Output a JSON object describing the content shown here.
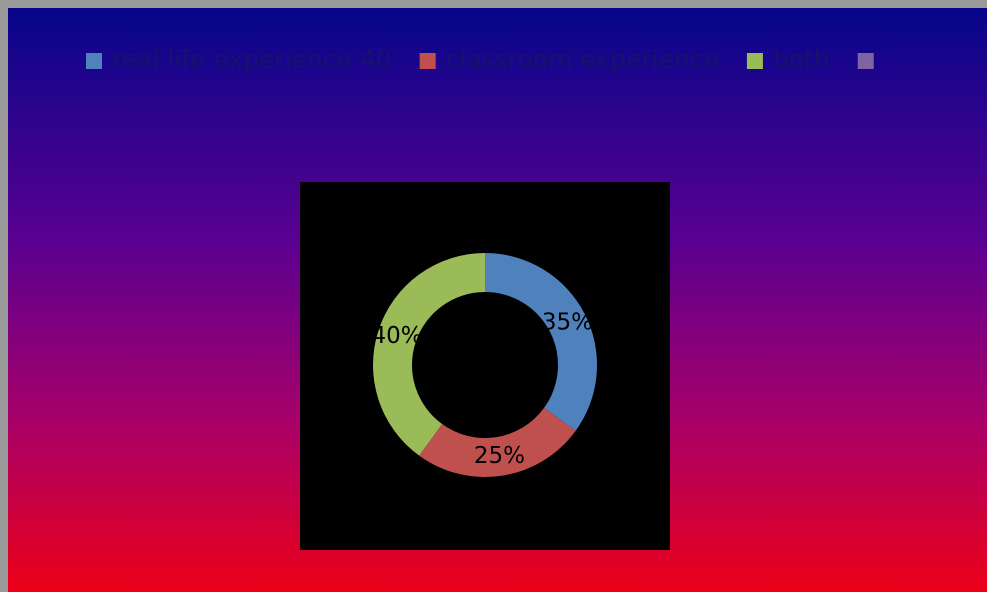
{
  "chart_data": {
    "type": "doughnut",
    "categories": [
      "real life experience 40",
      "classroom experience",
      "both",
      null
    ],
    "values": [
      35,
      25,
      40,
      null
    ],
    "value_labels": [
      "35%",
      "25%",
      "40%",
      null
    ],
    "colors": [
      "#4f81bd",
      "#c0504d",
      "#9bbb59",
      "#8064a2"
    ],
    "legend": "top"
  }
}
